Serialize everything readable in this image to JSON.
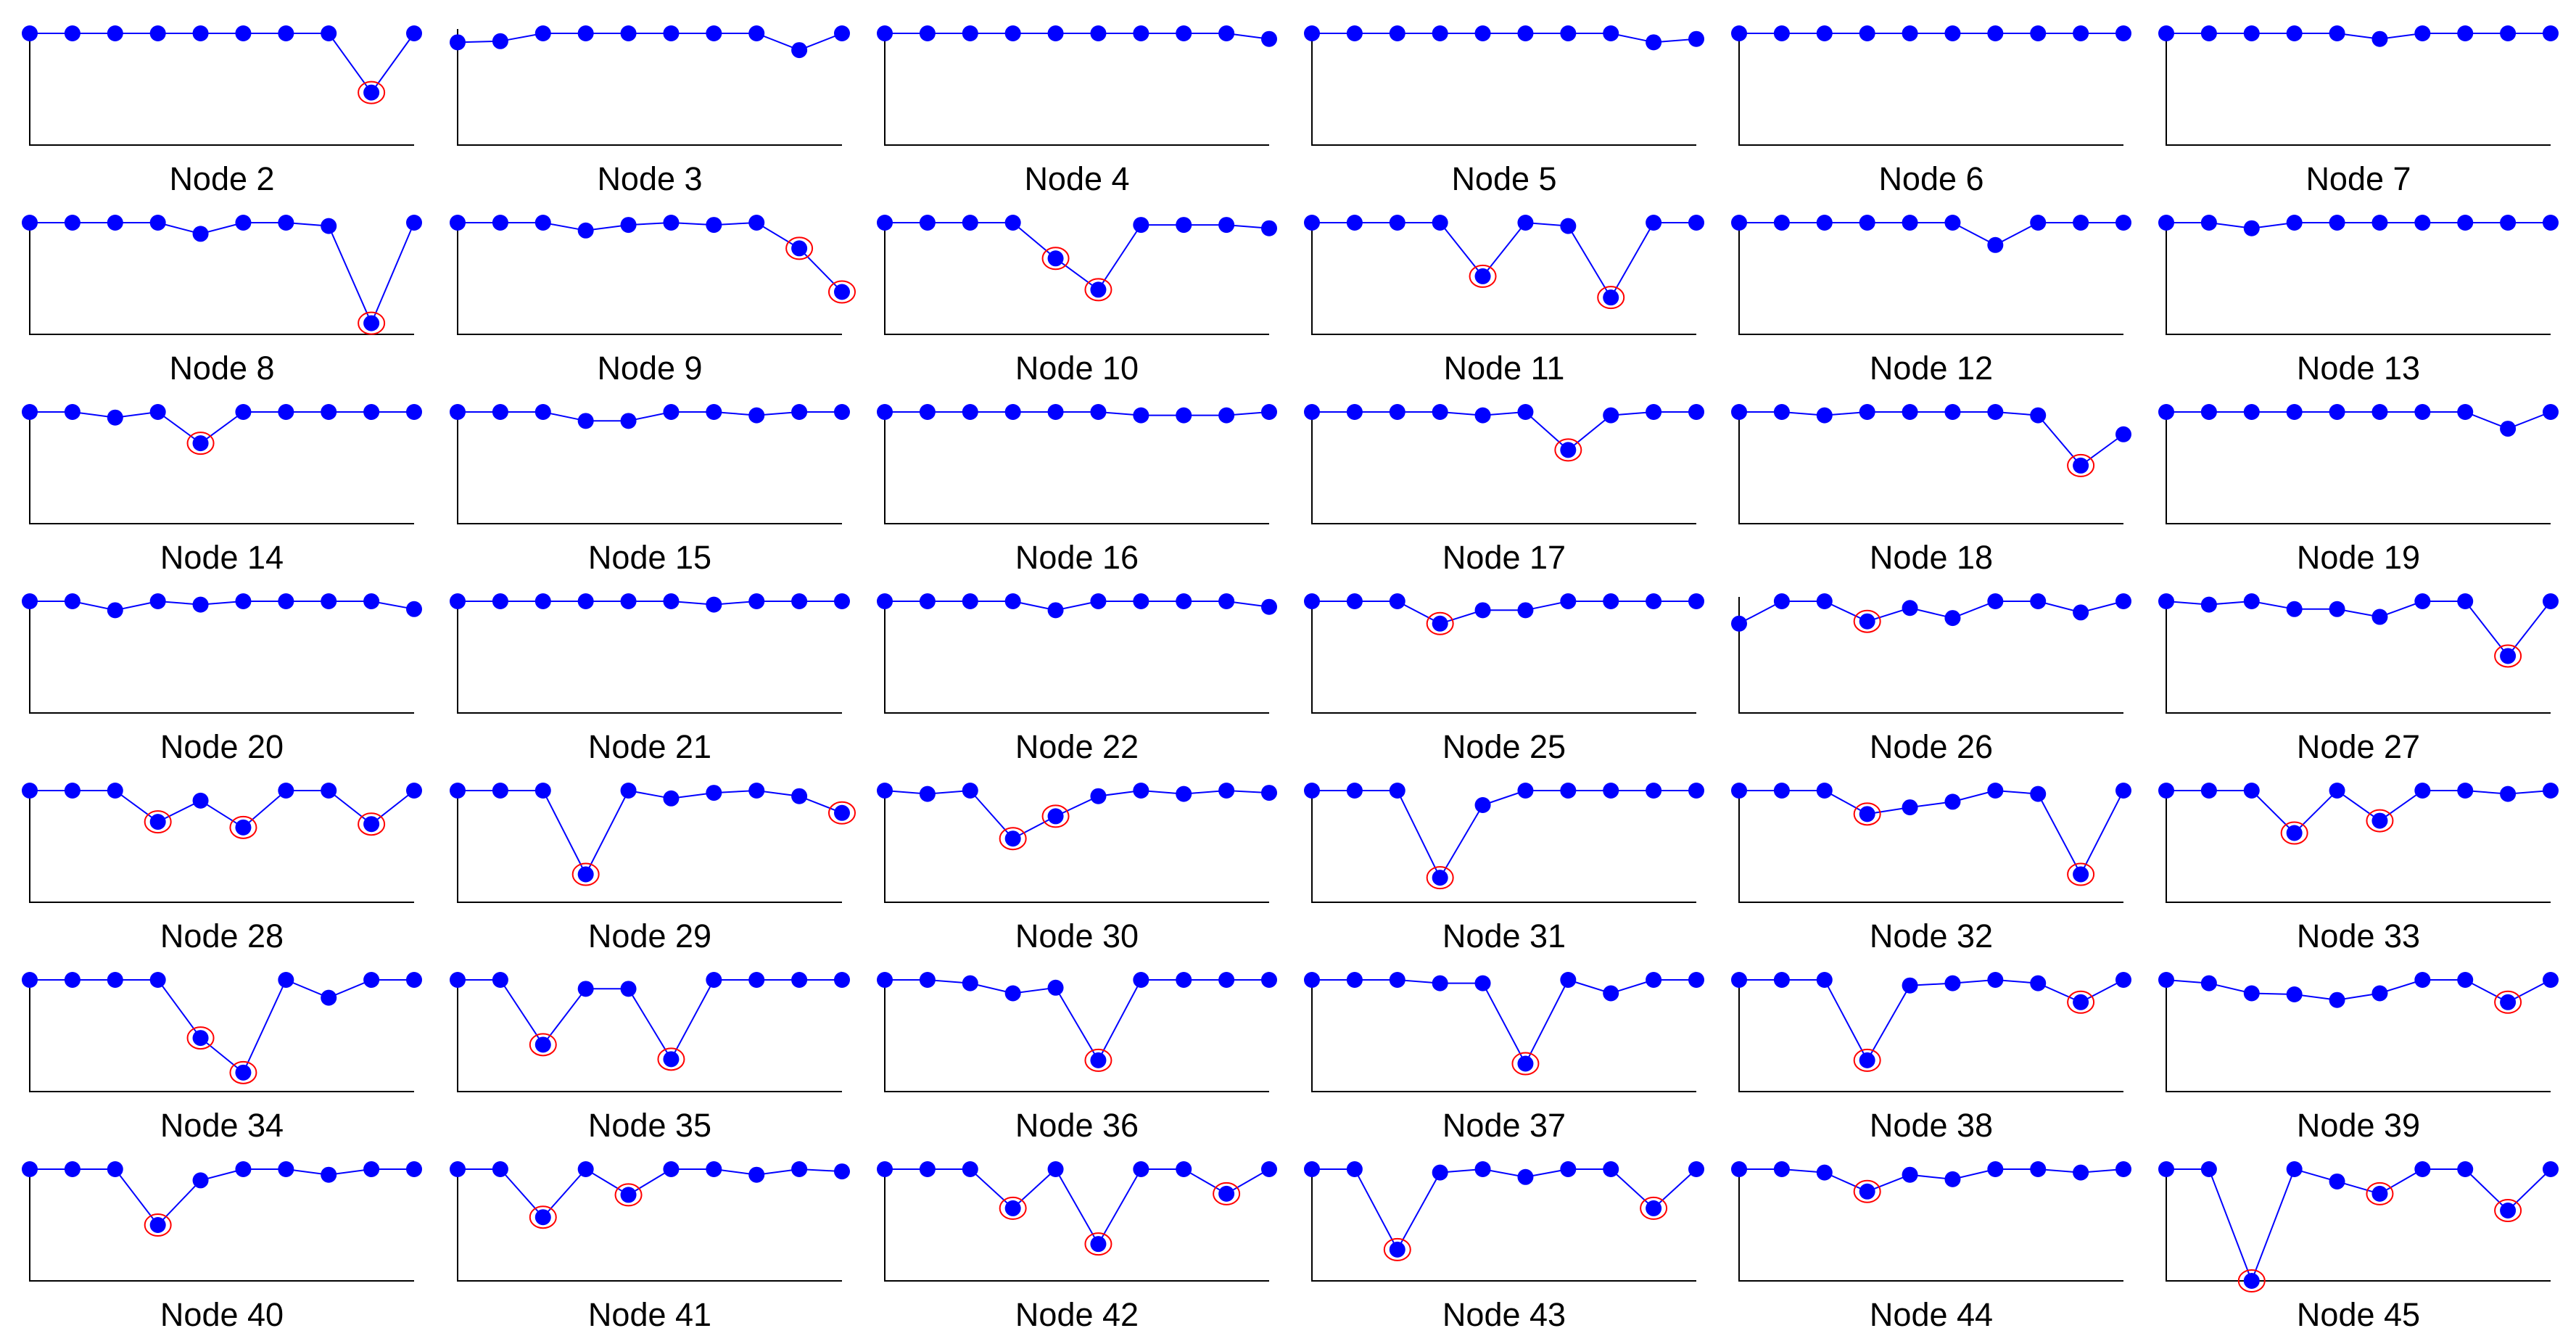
{
  "colors": {
    "line": "#0000ff",
    "marker": "#0000ff",
    "anomaly_ring": "#ff0000",
    "axis": "#000000",
    "text": "#000000"
  },
  "chart_data": [
    {
      "type": "line",
      "title": "Node 2",
      "ylim": [
        0,
        1
      ],
      "values": [
        1,
        1,
        1,
        1,
        1,
        1,
        1,
        1,
        0.47,
        1
      ],
      "anomalies": [
        8
      ]
    },
    {
      "type": "line",
      "title": "Node 3",
      "ylim": [
        0,
        1
      ],
      "values": [
        0.92,
        0.93,
        1,
        1,
        1,
        1,
        1,
        1,
        0.85,
        1
      ],
      "anomalies": []
    },
    {
      "type": "line",
      "title": "Node 4",
      "ylim": [
        0,
        1
      ],
      "values": [
        1,
        1,
        1,
        1,
        1,
        1,
        1,
        1,
        1,
        0.95
      ],
      "anomalies": []
    },
    {
      "type": "line",
      "title": "Node 5",
      "ylim": [
        0,
        1
      ],
      "values": [
        1,
        1,
        1,
        1,
        1,
        1,
        1,
        1,
        0.92,
        0.95
      ],
      "anomalies": []
    },
    {
      "type": "line",
      "title": "Node 6",
      "ylim": [
        0,
        1
      ],
      "values": [
        1,
        1,
        1,
        1,
        1,
        1,
        1,
        1,
        1,
        1
      ],
      "anomalies": []
    },
    {
      "type": "line",
      "title": "Node 7",
      "ylim": [
        0,
        1
      ],
      "values": [
        1,
        1,
        1,
        1,
        1,
        0.95,
        1,
        1,
        1,
        1
      ],
      "anomalies": []
    },
    {
      "type": "line",
      "title": "Node 8",
      "ylim": [
        0,
        1
      ],
      "values": [
        1,
        1,
        1,
        1,
        0.9,
        1,
        1,
        0.97,
        0.1,
        1
      ],
      "anomalies": [
        8
      ]
    },
    {
      "type": "line",
      "title": "Node 9",
      "ylim": [
        0,
        1
      ],
      "values": [
        1,
        1,
        1,
        0.93,
        0.98,
        1,
        0.98,
        1,
        0.77,
        0.38
      ],
      "anomalies": [
        8,
        9
      ]
    },
    {
      "type": "line",
      "title": "Node 10",
      "ylim": [
        0,
        1
      ],
      "values": [
        1,
        1,
        1,
        1,
        0.68,
        0.4,
        0.98,
        0.98,
        0.98,
        0.95
      ],
      "anomalies": [
        4,
        5
      ]
    },
    {
      "type": "line",
      "title": "Node 11",
      "ylim": [
        0,
        1
      ],
      "values": [
        1,
        1,
        1,
        1,
        0.52,
        1,
        0.97,
        0.33,
        1,
        1
      ],
      "anomalies": [
        4,
        7
      ]
    },
    {
      "type": "line",
      "title": "Node 12",
      "ylim": [
        0,
        1
      ],
      "values": [
        1,
        1,
        1,
        1,
        1,
        1,
        0.8,
        1,
        1,
        1
      ],
      "anomalies": []
    },
    {
      "type": "line",
      "title": "Node 13",
      "ylim": [
        0,
        1
      ],
      "values": [
        1,
        1,
        0.95,
        1,
        1,
        1,
        1,
        1,
        1,
        1
      ],
      "anomalies": []
    },
    {
      "type": "line",
      "title": "Node 14",
      "ylim": [
        0,
        1
      ],
      "values": [
        1,
        1,
        0.95,
        1,
        0.72,
        1,
        1,
        1,
        1,
        1
      ],
      "anomalies": [
        4
      ]
    },
    {
      "type": "line",
      "title": "Node 15",
      "ylim": [
        0,
        1
      ],
      "values": [
        1,
        1,
        1,
        0.92,
        0.92,
        1,
        1,
        0.97,
        1,
        1
      ],
      "anomalies": []
    },
    {
      "type": "line",
      "title": "Node 16",
      "ylim": [
        0,
        1
      ],
      "values": [
        1,
        1,
        1,
        1,
        1,
        1,
        0.97,
        0.97,
        0.97,
        1
      ],
      "anomalies": []
    },
    {
      "type": "line",
      "title": "Node 17",
      "ylim": [
        0,
        1
      ],
      "values": [
        1,
        1,
        1,
        1,
        0.97,
        1,
        0.66,
        0.97,
        1,
        1
      ],
      "anomalies": [
        6
      ]
    },
    {
      "type": "line",
      "title": "Node 18",
      "ylim": [
        0,
        1
      ],
      "values": [
        1,
        1,
        0.97,
        1,
        1,
        1,
        1,
        0.97,
        0.52,
        0.8
      ],
      "anomalies": [
        8
      ]
    },
    {
      "type": "line",
      "title": "Node 19",
      "ylim": [
        0,
        1
      ],
      "values": [
        1,
        1,
        1,
        1,
        1,
        1,
        1,
        1,
        0.85,
        1
      ],
      "anomalies": []
    },
    {
      "type": "line",
      "title": "Node 20",
      "ylim": [
        0,
        1
      ],
      "values": [
        1,
        1,
        0.92,
        1,
        0.97,
        1,
        1,
        1,
        1,
        0.93
      ],
      "anomalies": []
    },
    {
      "type": "line",
      "title": "Node 21",
      "ylim": [
        0,
        1
      ],
      "values": [
        1,
        1,
        1,
        1,
        1,
        1,
        0.97,
        1,
        1,
        1
      ],
      "anomalies": []
    },
    {
      "type": "line",
      "title": "Node 22",
      "ylim": [
        0,
        1
      ],
      "values": [
        1,
        1,
        1,
        1,
        0.92,
        1,
        1,
        1,
        1,
        0.95
      ],
      "anomalies": []
    },
    {
      "type": "line",
      "title": "Node 25",
      "ylim": [
        0,
        1
      ],
      "values": [
        1,
        1,
        1,
        0.8,
        0.92,
        0.92,
        1,
        1,
        1,
        1
      ],
      "anomalies": [
        3
      ]
    },
    {
      "type": "line",
      "title": "Node 26",
      "ylim": [
        0,
        1
      ],
      "values": [
        0.8,
        1,
        1,
        0.82,
        0.94,
        0.85,
        1,
        1,
        0.9,
        1
      ],
      "anomalies": [
        3
      ]
    },
    {
      "type": "line",
      "title": "Node 27",
      "ylim": [
        0,
        1
      ],
      "values": [
        1,
        0.97,
        1,
        0.93,
        0.93,
        0.86,
        1,
        1,
        0.51,
        1
      ],
      "anomalies": [
        8
      ]
    },
    {
      "type": "line",
      "title": "Node 28",
      "ylim": [
        0,
        1
      ],
      "values": [
        1,
        1,
        1,
        0.72,
        0.91,
        0.67,
        1,
        1,
        0.7,
        1
      ],
      "anomalies": [
        3,
        5,
        8
      ]
    },
    {
      "type": "line",
      "title": "Node 29",
      "ylim": [
        0,
        1
      ],
      "values": [
        1,
        1,
        1,
        0.25,
        1,
        0.93,
        0.98,
        1,
        0.95,
        0.8
      ],
      "anomalies": [
        3,
        9
      ]
    },
    {
      "type": "line",
      "title": "Node 30",
      "ylim": [
        0,
        1
      ],
      "values": [
        1,
        0.97,
        1,
        0.57,
        0.77,
        0.95,
        1,
        0.97,
        1,
        0.98
      ],
      "anomalies": [
        3,
        4
      ]
    },
    {
      "type": "line",
      "title": "Node 31",
      "ylim": [
        0,
        1
      ],
      "values": [
        1,
        1,
        1,
        0.22,
        0.87,
        1,
        1,
        1,
        1,
        1
      ],
      "anomalies": [
        3
      ]
    },
    {
      "type": "line",
      "title": "Node 32",
      "ylim": [
        0,
        1
      ],
      "values": [
        1,
        1,
        1,
        0.79,
        0.85,
        0.9,
        1,
        0.97,
        0.25,
        1
      ],
      "anomalies": [
        3,
        8
      ]
    },
    {
      "type": "line",
      "title": "Node 33",
      "ylim": [
        0,
        1
      ],
      "values": [
        1,
        1,
        1,
        0.62,
        1,
        0.73,
        1,
        1,
        0.97,
        1
      ],
      "anomalies": [
        3,
        5
      ]
    },
    {
      "type": "line",
      "title": "Node 34",
      "ylim": [
        0,
        1
      ],
      "values": [
        1,
        1,
        1,
        1,
        0.48,
        0.17,
        1,
        0.84,
        1,
        1
      ],
      "anomalies": [
        4,
        5
      ]
    },
    {
      "type": "line",
      "title": "Node 35",
      "ylim": [
        0,
        1
      ],
      "values": [
        1,
        1,
        0.42,
        0.92,
        0.92,
        0.29,
        1,
        1,
        1,
        1
      ],
      "anomalies": [
        2,
        5
      ]
    },
    {
      "type": "line",
      "title": "Node 36",
      "ylim": [
        0,
        1
      ],
      "values": [
        1,
        1,
        0.97,
        0.88,
        0.93,
        0.28,
        1,
        1,
        1,
        1
      ],
      "anomalies": [
        5
      ]
    },
    {
      "type": "line",
      "title": "Node 37",
      "ylim": [
        0,
        1
      ],
      "values": [
        1,
        1,
        1,
        0.97,
        0.97,
        0.25,
        1,
        0.88,
        1,
        1
      ],
      "anomalies": [
        5
      ]
    },
    {
      "type": "line",
      "title": "Node 38",
      "ylim": [
        0,
        1
      ],
      "values": [
        1,
        1,
        1,
        0.28,
        0.95,
        0.97,
        1,
        0.97,
        0.8,
        1
      ],
      "anomalies": [
        3,
        8
      ]
    },
    {
      "type": "line",
      "title": "Node 39",
      "ylim": [
        0,
        1
      ],
      "values": [
        1,
        0.97,
        0.88,
        0.87,
        0.82,
        0.88,
        1,
        1,
        0.8,
        1
      ],
      "anomalies": [
        8
      ]
    },
    {
      "type": "line",
      "title": "Node 40",
      "ylim": [
        0,
        1
      ],
      "values": [
        1,
        1,
        1,
        0.5,
        0.9,
        1,
        1,
        0.95,
        1,
        1
      ],
      "anomalies": [
        3
      ]
    },
    {
      "type": "line",
      "title": "Node 41",
      "ylim": [
        0,
        1
      ],
      "values": [
        1,
        1,
        0.57,
        1,
        0.77,
        1,
        1,
        0.95,
        1,
        0.98
      ],
      "anomalies": [
        2,
        4
      ]
    },
    {
      "type": "line",
      "title": "Node 42",
      "ylim": [
        0,
        1
      ],
      "values": [
        1,
        1,
        1,
        0.65,
        1,
        0.33,
        1,
        1,
        0.78,
        1
      ],
      "anomalies": [
        3,
        5,
        8
      ]
    },
    {
      "type": "line",
      "title": "Node 43",
      "ylim": [
        0,
        1
      ],
      "values": [
        1,
        1,
        0.28,
        0.97,
        1,
        0.93,
        1,
        1,
        0.65,
        1
      ],
      "anomalies": [
        2,
        8
      ]
    },
    {
      "type": "line",
      "title": "Node 44",
      "ylim": [
        0,
        1
      ],
      "values": [
        1,
        1,
        0.97,
        0.8,
        0.95,
        0.91,
        1,
        1,
        0.97,
        1
      ],
      "anomalies": [
        3
      ]
    },
    {
      "type": "line",
      "title": "Node 45",
      "ylim": [
        0,
        1
      ],
      "values": [
        1,
        1,
        0,
        1,
        0.89,
        0.78,
        1,
        1,
        0.63,
        1
      ],
      "anomalies": [
        2,
        5,
        8
      ]
    }
  ]
}
